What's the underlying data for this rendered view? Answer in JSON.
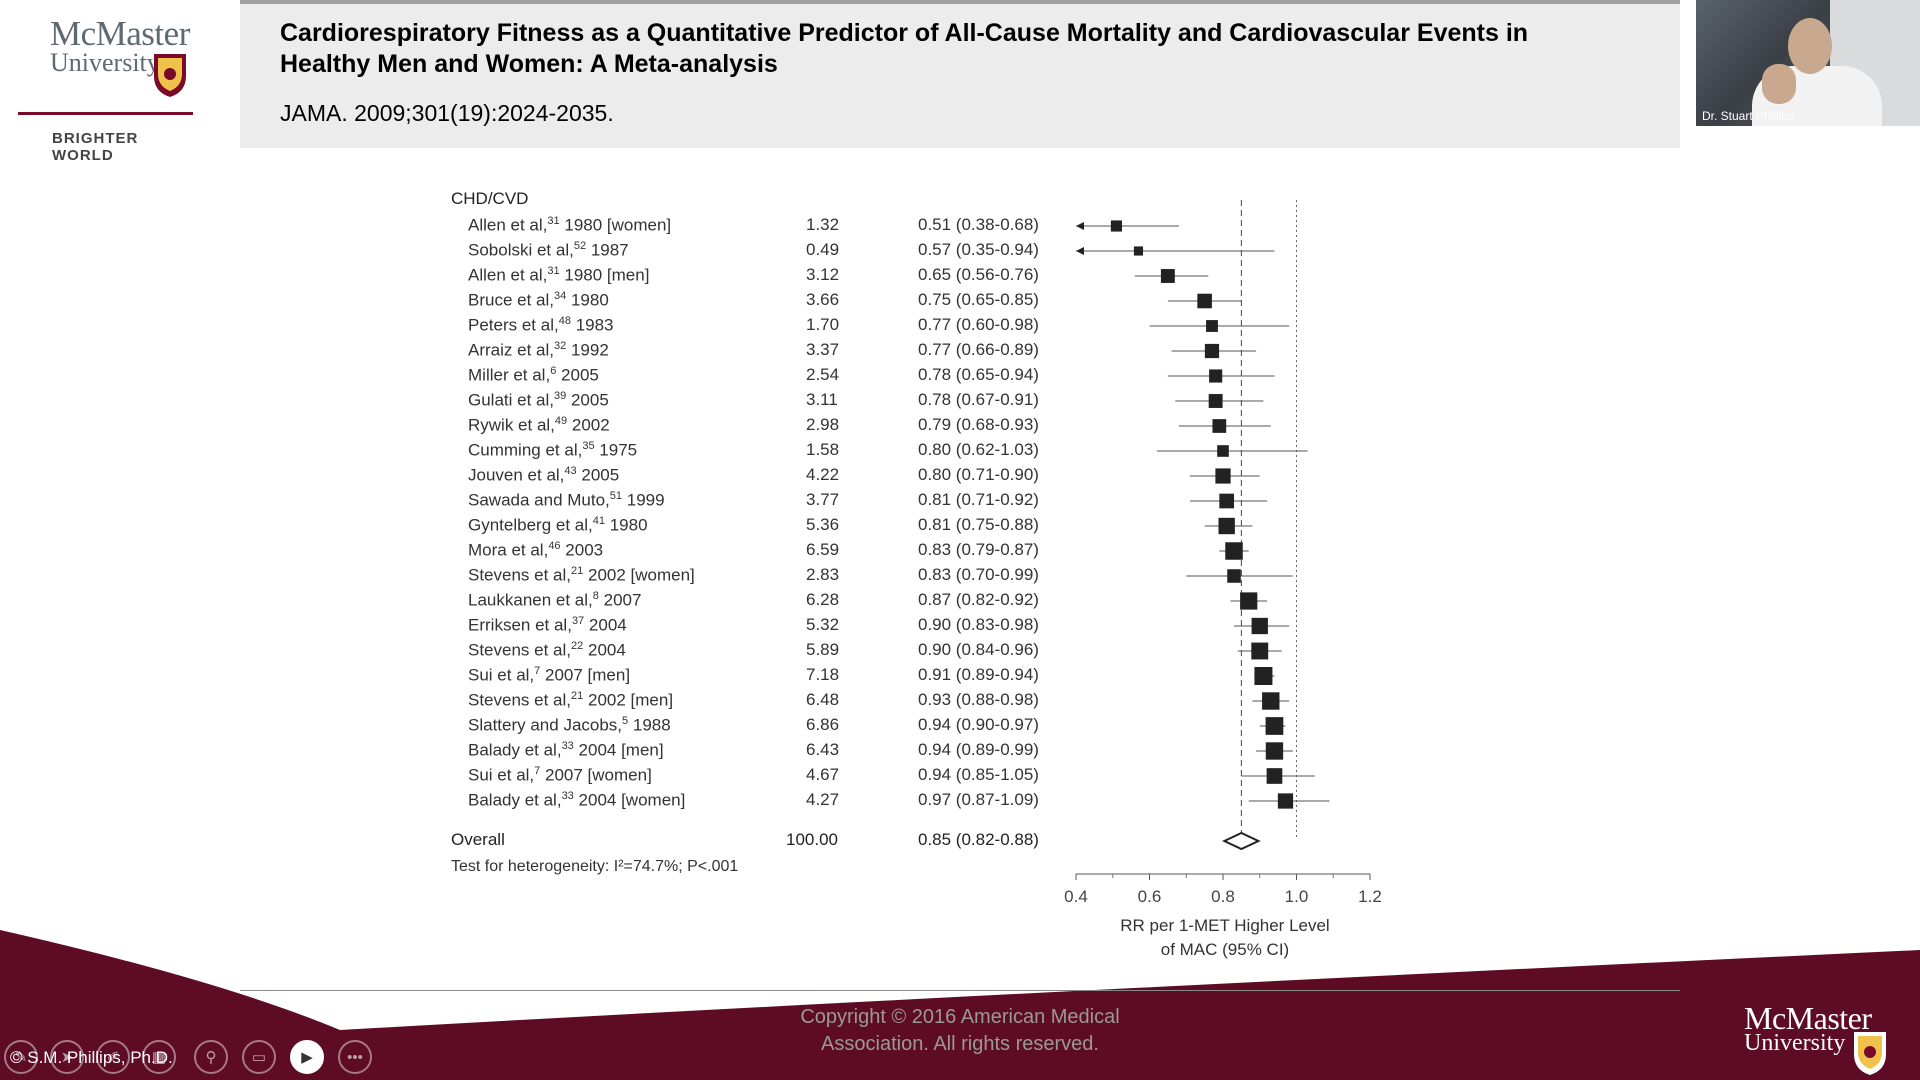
{
  "logo_left": {
    "wordmark_line1": "McMaster",
    "wordmark_line2": "University",
    "tagline": "BRIGHTER WORLD"
  },
  "header": {
    "title": "Cardiorespiratory Fitness as a Quantitative Predictor of All-Cause Mortality and Cardiovascular Events in Healthy Men and Women: A Meta-analysis",
    "citation": "JAMA. 2009;301(19):2024-2035."
  },
  "video": {
    "presenter_name": "Dr. Stuart Phillips"
  },
  "forest_plot": {
    "group_label": "CHD/CVD",
    "overall_label": "Overall",
    "overall_weight": "100.00",
    "overall_rr": "0.85 (0.82-0.88)",
    "heterogeneity": "Test for heterogeneity: I²=74.7%; P<.001",
    "axis_label_line1": "RR per 1-MET Higher Level",
    "axis_label_line2": "of MAC (95% CI)",
    "ticks": [
      "0.4",
      "0.6",
      "0.8",
      "1.0",
      "1.2"
    ]
  },
  "chart_data": {
    "type": "scatter",
    "title": "",
    "xlabel": "RR per 1-MET Higher Level of MAC (95% CI)",
    "xlim": [
      0.4,
      1.2
    ],
    "reference_line": 1.0,
    "overall_line": 0.85,
    "rows": [
      {
        "study": "Allen et al,",
        "ref": "31",
        "detail": " 1980 [women]",
        "weight": "1.32",
        "rr_text": "0.51 (0.38-0.68)",
        "rr": 0.51,
        "lo": 0.38,
        "hi": 0.68
      },
      {
        "study": "Sobolski et al,",
        "ref": "52",
        "detail": " 1987",
        "weight": "0.49",
        "rr_text": "0.57 (0.35-0.94)",
        "rr": 0.57,
        "lo": 0.35,
        "hi": 0.94
      },
      {
        "study": "Allen et al,",
        "ref": "31",
        "detail": " 1980 [men]",
        "weight": "3.12",
        "rr_text": "0.65 (0.56-0.76)",
        "rr": 0.65,
        "lo": 0.56,
        "hi": 0.76
      },
      {
        "study": "Bruce et al,",
        "ref": "34",
        "detail": " 1980",
        "weight": "3.66",
        "rr_text": "0.75 (0.65-0.85)",
        "rr": 0.75,
        "lo": 0.65,
        "hi": 0.85
      },
      {
        "study": "Peters et al,",
        "ref": "48",
        "detail": " 1983",
        "weight": "1.70",
        "rr_text": "0.77 (0.60-0.98)",
        "rr": 0.77,
        "lo": 0.6,
        "hi": 0.98
      },
      {
        "study": "Arraiz et al,",
        "ref": "32",
        "detail": " 1992",
        "weight": "3.37",
        "rr_text": "0.77 (0.66-0.89)",
        "rr": 0.77,
        "lo": 0.66,
        "hi": 0.89
      },
      {
        "study": "Miller et al,",
        "ref": "6",
        "detail": " 2005",
        "weight": "2.54",
        "rr_text": "0.78 (0.65-0.94)",
        "rr": 0.78,
        "lo": 0.65,
        "hi": 0.94
      },
      {
        "study": "Gulati et al,",
        "ref": "39",
        "detail": " 2005",
        "weight": "3.11",
        "rr_text": "0.78 (0.67-0.91)",
        "rr": 0.78,
        "lo": 0.67,
        "hi": 0.91
      },
      {
        "study": "Rywik et al,",
        "ref": "49",
        "detail": " 2002",
        "weight": "2.98",
        "rr_text": "0.79 (0.68-0.93)",
        "rr": 0.79,
        "lo": 0.68,
        "hi": 0.93
      },
      {
        "study": "Cumming et al,",
        "ref": "35",
        "detail": " 1975",
        "weight": "1.58",
        "rr_text": "0.80 (0.62-1.03)",
        "rr": 0.8,
        "lo": 0.62,
        "hi": 1.03
      },
      {
        "study": "Jouven et al,",
        "ref": "43",
        "detail": " 2005",
        "weight": "4.22",
        "rr_text": "0.80 (0.71-0.90)",
        "rr": 0.8,
        "lo": 0.71,
        "hi": 0.9
      },
      {
        "study": "Sawada and Muto,",
        "ref": "51",
        "detail": " 1999",
        "weight": "3.77",
        "rr_text": "0.81 (0.71-0.92)",
        "rr": 0.81,
        "lo": 0.71,
        "hi": 0.92
      },
      {
        "study": "Gyntelberg et al,",
        "ref": "41",
        "detail": " 1980",
        "weight": "5.36",
        "rr_text": "0.81 (0.75-0.88)",
        "rr": 0.81,
        "lo": 0.75,
        "hi": 0.88
      },
      {
        "study": "Mora et al,",
        "ref": "46",
        "detail": " 2003",
        "weight": "6.59",
        "rr_text": "0.83 (0.79-0.87)",
        "rr": 0.83,
        "lo": 0.79,
        "hi": 0.87
      },
      {
        "study": "Stevens et al,",
        "ref": "21",
        "detail": " 2002 [women]",
        "weight": "2.83",
        "rr_text": "0.83 (0.70-0.99)",
        "rr": 0.83,
        "lo": 0.7,
        "hi": 0.99
      },
      {
        "study": "Laukkanen et al,",
        "ref": "8",
        "detail": " 2007",
        "weight": "6.28",
        "rr_text": "0.87 (0.82-0.92)",
        "rr": 0.87,
        "lo": 0.82,
        "hi": 0.92
      },
      {
        "study": "Erriksen et al,",
        "ref": "37",
        "detail": " 2004",
        "weight": "5.32",
        "rr_text": "0.90 (0.83-0.98)",
        "rr": 0.9,
        "lo": 0.83,
        "hi": 0.98
      },
      {
        "study": "Stevens et al,",
        "ref": "22",
        "detail": " 2004",
        "weight": "5.89",
        "rr_text": "0.90 (0.84-0.96)",
        "rr": 0.9,
        "lo": 0.84,
        "hi": 0.96
      },
      {
        "study": "Sui et al,",
        "ref": "7",
        "detail": " 2007 [men]",
        "weight": "7.18",
        "rr_text": "0.91 (0.89-0.94)",
        "rr": 0.91,
        "lo": 0.89,
        "hi": 0.94
      },
      {
        "study": "Stevens et al,",
        "ref": "21",
        "detail": " 2002 [men]",
        "weight": "6.48",
        "rr_text": "0.93 (0.88-0.98)",
        "rr": 0.93,
        "lo": 0.88,
        "hi": 0.98
      },
      {
        "study": "Slattery and Jacobs,",
        "ref": "5",
        "detail": " 1988",
        "weight": "6.86",
        "rr_text": "0.94 (0.90-0.97)",
        "rr": 0.94,
        "lo": 0.9,
        "hi": 0.97
      },
      {
        "study": "Balady et al,",
        "ref": "33",
        "detail": " 2004 [men]",
        "weight": "6.43",
        "rr_text": "0.94 (0.89-0.99)",
        "rr": 0.94,
        "lo": 0.89,
        "hi": 0.99
      },
      {
        "study": "Sui et al,",
        "ref": "7",
        "detail": " 2007 [women]",
        "weight": "4.67",
        "rr_text": "0.94 (0.85-1.05)",
        "rr": 0.94,
        "lo": 0.85,
        "hi": 1.05
      },
      {
        "study": "Balady et al,",
        "ref": "33",
        "detail": " 2004 [women]",
        "weight": "4.27",
        "rr_text": "0.97 (0.87-1.09)",
        "rr": 0.97,
        "lo": 0.87,
        "hi": 1.09
      }
    ],
    "overall": {
      "rr": 0.85,
      "lo": 0.82,
      "hi": 0.88
    }
  },
  "footer": {
    "copyright_line1": "Copyright © 2016 American Medical",
    "copyright_line2": "Association. All rights reserved.",
    "credit": "© S.M. Phillips, Ph.D.",
    "logo_line1": "McMaster",
    "logo_line2": "University"
  },
  "colors": {
    "maroon": "#5e0b25",
    "marker": "#222222"
  },
  "toolbar": {
    "icons": [
      "pen-icon",
      "pointer-icon",
      "highlighter-icon",
      "grid-icon",
      "zoom-icon",
      "subtitles-icon",
      "camera-icon",
      "more-icon"
    ]
  }
}
